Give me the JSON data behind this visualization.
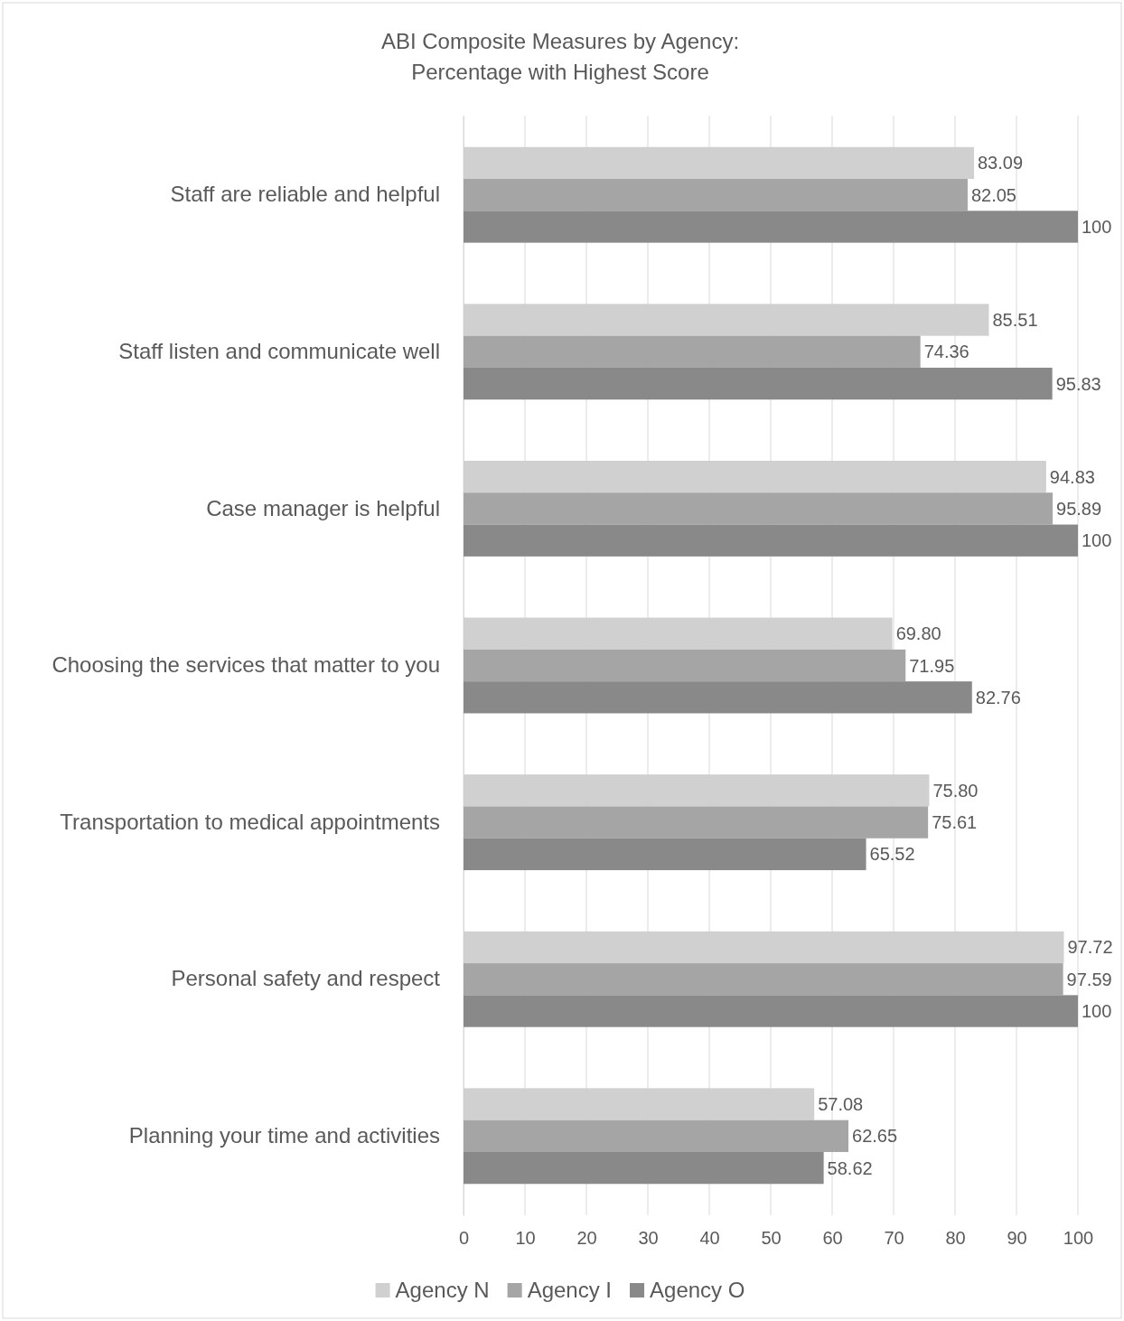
{
  "chart_data": {
    "type": "bar",
    "orientation": "horizontal",
    "title": "ABI Composite Measures by Agency:\nPercentage with Highest Score",
    "categories": [
      "Staff are reliable and helpful",
      "Staff listen and communicate well",
      "Case manager is helpful",
      "Choosing the services that matter to you",
      "Transportation to medical appointments",
      "Personal safety and respect",
      "Planning your time and activities"
    ],
    "series": [
      {
        "name": "Agency N",
        "color": "#d0d0d0",
        "values": [
          83.09,
          85.51,
          94.83,
          69.8,
          75.8,
          97.72,
          57.08
        ],
        "value_labels": [
          "83.09",
          "85.51",
          "94.83",
          "69.80",
          "75.80",
          "97.72",
          "57.08"
        ]
      },
      {
        "name": "Agency I",
        "color": "#a5a5a5",
        "values": [
          82.05,
          74.36,
          95.89,
          71.95,
          75.61,
          97.59,
          62.65
        ],
        "value_labels": [
          "82.05",
          "74.36",
          "95.89",
          "71.95",
          "75.61",
          "97.59",
          "62.65"
        ]
      },
      {
        "name": "Agency O",
        "color": "#898989",
        "values": [
          100,
          95.83,
          100,
          82.76,
          65.52,
          100,
          58.62
        ],
        "value_labels": [
          "100",
          "95.83",
          "100",
          "82.76",
          "65.52",
          "100",
          "58.62"
        ]
      }
    ],
    "xlim": [
      0,
      100
    ],
    "xticks": [
      0,
      10,
      20,
      30,
      40,
      50,
      60,
      70,
      80,
      90,
      100
    ],
    "grid": "x",
    "legend": "bottom"
  }
}
